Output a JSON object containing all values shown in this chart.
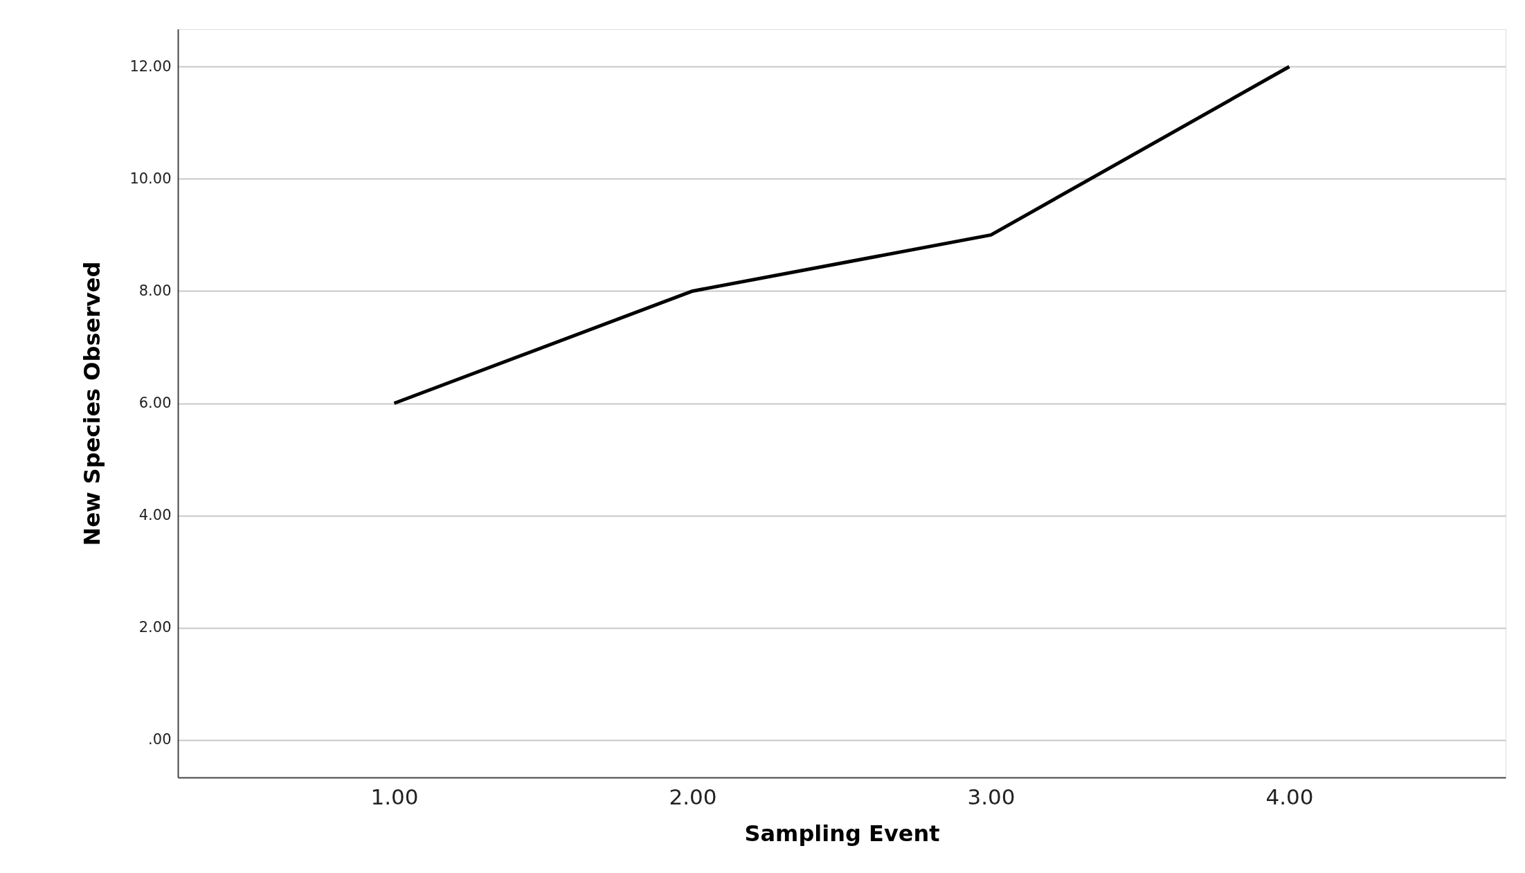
{
  "chart_data": {
    "type": "line",
    "xlabel": "Sampling Event",
    "ylabel": "New Species Observed",
    "categories": [
      "1.00",
      "2.00",
      "3.00",
      "4.00"
    ],
    "series": [
      {
        "color": "#000000",
        "values": [
          6,
          8,
          9,
          12
        ]
      }
    ],
    "ylim": [
      -0.67,
      12.67
    ],
    "yticks": [
      {
        "value": 0,
        "label": ".00"
      },
      {
        "value": 2,
        "label": "2.00"
      },
      {
        "value": 4,
        "label": "4.00"
      },
      {
        "value": 6,
        "label": "6.00"
      },
      {
        "value": 8,
        "label": "8.00"
      },
      {
        "value": 10,
        "label": "10.00"
      },
      {
        "value": 12,
        "label": "12.00"
      }
    ],
    "grid": "y",
    "marker": "none",
    "line_style": "solid"
  }
}
